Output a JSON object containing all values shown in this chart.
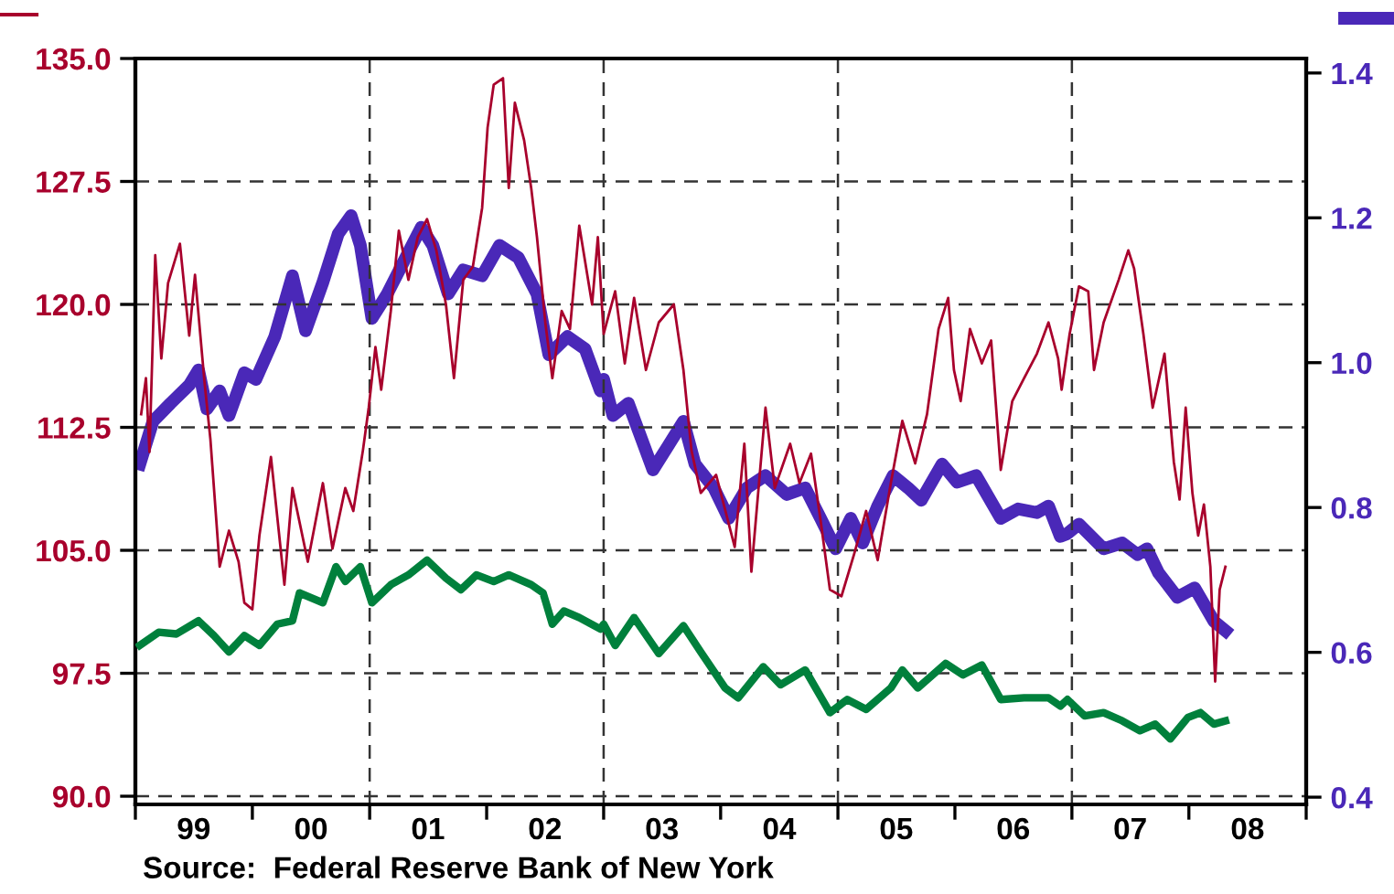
{
  "chart_data": {
    "type": "line",
    "xlim": [
      "1999-01-01",
      "2009-01-01"
    ],
    "xticks": [
      {
        "value": "1999-01-01",
        "label": null
      },
      {
        "value": "2000-01-01",
        "label": null
      },
      {
        "value": "2001-01-01",
        "label": null
      },
      {
        "value": "2002-01-01",
        "label": null
      },
      {
        "value": "2003-01-01",
        "label": null
      },
      {
        "value": "2004-01-01",
        "label": null
      },
      {
        "value": "2005-01-01",
        "label": null
      },
      {
        "value": "2006-01-01",
        "label": null
      },
      {
        "value": "2007-01-01",
        "label": null
      },
      {
        "value": "2008-01-01",
        "label": null
      },
      {
        "value": "2009-01-01",
        "label": null
      },
      {
        "value": "1999-07-02",
        "label": "99"
      },
      {
        "value": "2000-07-02",
        "label": "00"
      },
      {
        "value": "2001-07-02",
        "label": "01"
      },
      {
        "value": "2002-07-02",
        "label": "02"
      },
      {
        "value": "2003-07-02",
        "label": "03"
      },
      {
        "value": "2004-07-02",
        "label": "04"
      },
      {
        "value": "2005-07-02",
        "label": "05"
      },
      {
        "value": "2006-07-02",
        "label": "06"
      },
      {
        "value": "2007-07-02",
        "label": "07"
      },
      {
        "value": "2008-07-02",
        "label": "08"
      }
    ],
    "ylim": [
      89.5,
      135
    ],
    "yticks": [
      {
        "value": 90,
        "label": "90.0"
      },
      {
        "value": 97.5,
        "label": "97.5"
      },
      {
        "value": 105,
        "label": "105.0"
      },
      {
        "value": 112.5,
        "label": "112.5"
      },
      {
        "value": 120,
        "label": "120.0"
      },
      {
        "value": 127.5,
        "label": "127.5"
      },
      {
        "value": 135,
        "label": "135.0"
      }
    ],
    "y2lim": [
      0.39,
      1.42
    ],
    "y2ticks": [
      {
        "value": 0.4,
        "label": "0.4"
      },
      {
        "value": 0.6,
        "label": "0.6"
      },
      {
        "value": 0.8,
        "label": "0.8"
      },
      {
        "value": 1.0,
        "label": "1.0"
      },
      {
        "value": 1.2,
        "label": "1.2"
      },
      {
        "value": 1.4,
        "label": "1.4"
      }
    ],
    "grid": "y",
    "ref_lines": [
      {
        "axis": "x",
        "value": "2001-01-01",
        "line_style": "dashed"
      },
      {
        "axis": "x",
        "value": "2003-01-01",
        "line_style": "dashed"
      },
      {
        "axis": "x",
        "value": "2005-01-01",
        "line_style": "dashed"
      },
      {
        "axis": "x",
        "value": "2007-01-01",
        "line_style": "dashed"
      }
    ],
    "marker": "none",
    "line_style": "solid",
    "annotations": [
      "Source:  Federal Reserve Bank of New York"
    ],
    "series": [
      {
        "color": "#a8002c",
        "x": [
          "1999-01-19",
          "1999-02-03",
          "1999-02-14",
          "1999-03-04",
          "1999-03-23",
          "1999-04-13",
          "1999-05-20",
          "1999-06-18",
          "1999-07-06",
          "1999-08-05",
          "1999-08-23",
          "1999-09-21",
          "1999-10-20",
          "1999-11-19",
          "1999-12-07",
          "2000-01-01",
          "2000-01-23",
          "2000-02-28",
          "2000-04-10",
          "2000-05-05",
          "2000-06-22",
          "2000-08-08",
          "2000-09-07",
          "2000-10-17",
          "2000-11-11",
          "2000-12-11",
          "2000-12-29",
          "2001-01-19",
          "2001-02-06",
          "2001-03-08",
          "2001-04-02",
          "2001-05-02",
          "2001-05-31",
          "2001-06-29",
          "2001-07-28",
          "2001-08-27",
          "2001-09-21",
          "2001-10-20",
          "2001-11-19",
          "2001-12-18",
          "2002-01-04",
          "2002-01-23",
          "2002-02-21",
          "2002-03-11",
          "2002-03-30",
          "2002-04-28",
          "2002-05-20",
          "2002-06-07",
          "2002-07-03",
          "2002-07-25",
          "2002-08-23",
          "2002-09-18",
          "2002-10-17",
          "2002-11-26",
          "2002-12-14",
          "2003-01-01",
          "2003-02-06",
          "2003-03-08",
          "2003-04-06",
          "2003-05-13",
          "2003-06-22",
          "2003-08-08",
          "2003-09-07",
          "2003-10-02",
          "2003-10-31",
          "2003-12-18",
          "2004-02-14",
          "2004-03-15",
          "2004-04-06",
          "2004-05-20",
          "2004-06-18",
          "2004-08-05",
          "2004-09-03",
          "2004-10-09",
          "2004-11-08",
          "2004-12-07",
          "2005-01-12",
          "2005-02-21",
          "2005-03-30",
          "2005-05-05",
          "2005-06-15",
          "2005-07-21",
          "2005-08-30",
          "2005-10-06",
          "2005-11-11",
          "2005-12-11",
          "2005-12-29",
          "2006-01-19",
          "2006-02-17",
          "2006-03-26",
          "2006-04-24",
          "2006-05-24",
          "2006-06-29",
          "2006-08-05",
          "2006-09-14",
          "2006-10-20",
          "2006-11-19",
          "2006-11-30",
          "2006-12-25",
          "2007-01-23",
          "2007-02-21",
          "2007-03-11",
          "2007-04-10",
          "2007-05-27",
          "2007-06-26",
          "2007-07-14",
          "2007-08-12",
          "2007-09-10",
          "2007-10-17",
          "2007-11-15",
          "2007-12-03",
          "2007-12-22",
          "2008-01-12",
          "2008-01-30",
          "2008-02-17",
          "2008-03-08",
          "2008-03-23",
          "2008-04-06",
          "2008-04-24"
        ],
        "values": [
          113.3,
          115.5,
          111.0,
          123.0,
          116.7,
          121.3,
          123.7,
          118.1,
          121.8,
          115.2,
          111.8,
          104.0,
          106.2,
          104.3,
          101.8,
          101.4,
          105.9,
          110.7,
          102.9,
          108.8,
          104.3,
          109.1,
          105.1,
          108.8,
          107.4,
          111.1,
          113.7,
          117.4,
          114.8,
          119.6,
          124.5,
          121.5,
          124.1,
          125.2,
          123.3,
          120.0,
          115.5,
          121.5,
          122.3,
          125.9,
          130.8,
          133.4,
          133.8,
          127.1,
          132.3,
          130.0,
          127.1,
          124.1,
          118.9,
          115.5,
          119.6,
          118.5,
          124.8,
          120.0,
          124.1,
          118.2,
          120.8,
          116.4,
          120.4,
          116.0,
          118.9,
          120.0,
          116.0,
          111.1,
          108.5,
          109.6,
          105.2,
          111.5,
          103.7,
          113.7,
          108.8,
          111.5,
          109.1,
          110.9,
          106.8,
          102.6,
          102.2,
          104.8,
          107.4,
          104.4,
          109.1,
          112.9,
          110.3,
          113.3,
          118.5,
          120.4,
          116.0,
          114.1,
          118.5,
          116.4,
          117.8,
          109.9,
          114.1,
          115.5,
          117.0,
          118.9,
          116.7,
          114.8,
          118.2,
          121.1,
          120.8,
          116.0,
          118.9,
          121.5,
          123.3,
          122.2,
          118.2,
          113.7,
          117.0,
          110.4,
          108.1,
          113.7,
          108.5,
          105.9,
          107.8,
          104.0,
          97.0,
          102.6,
          104.0
        ]
      },
      {
        "color": "#4a28b8",
        "axis": "y2",
        "x": [
          "1999-01-15",
          "1999-02-25",
          "1999-04-21",
          "1999-06-18",
          "1999-07-17",
          "1999-08-12",
          "1999-09-21",
          "1999-10-20",
          "1999-12-07",
          "2000-01-12",
          "2000-03-11",
          "2000-05-05",
          "2000-06-15",
          "2000-08-08",
          "2000-09-25",
          "2000-11-04",
          "2000-12-03",
          "2001-01-08",
          "2001-02-25",
          "2001-04-13",
          "2001-06-11",
          "2001-07-17",
          "2001-09-03",
          "2001-10-20",
          "2001-12-18",
          "2002-02-10",
          "2002-04-10",
          "2002-06-07",
          "2002-07-14",
          "2002-09-10",
          "2002-11-04",
          "2002-12-22",
          "2003-01-01",
          "2003-01-30",
          "2003-03-19",
          "2003-06-04",
          "2003-07-21",
          "2003-09-07",
          "2003-10-13",
          "2003-12-11",
          "2004-01-26",
          "2004-03-23",
          "2004-05-20",
          "2004-07-25",
          "2004-09-21",
          "2004-11-08",
          "2004-12-25",
          "2005-02-10",
          "2005-03-19",
          "2005-05-05",
          "2005-06-22",
          "2005-08-08",
          "2005-09-18",
          "2005-11-22",
          "2006-01-08",
          "2006-03-08",
          "2006-05-24",
          "2006-07-17",
          "2006-09-14",
          "2006-10-20",
          "2006-11-26",
          "2006-12-18",
          "2007-01-23",
          "2007-04-10",
          "2007-06-07",
          "2007-07-25",
          "2007-08-23",
          "2007-09-28",
          "2007-11-26",
          "2008-01-19",
          "2008-03-19",
          "2008-04-24"
        ],
        "values": [
          0.86,
          0.919,
          0.944,
          0.969,
          0.99,
          0.936,
          0.961,
          0.927,
          0.986,
          0.977,
          1.036,
          1.12,
          1.044,
          1.111,
          1.178,
          1.203,
          1.162,
          1.061,
          1.095,
          1.136,
          1.187,
          1.162,
          1.095,
          1.128,
          1.12,
          1.162,
          1.145,
          1.095,
          1.011,
          1.036,
          1.019,
          0.961,
          0.977,
          0.927,
          0.944,
          0.852,
          0.885,
          0.919,
          0.86,
          0.827,
          0.785,
          0.827,
          0.844,
          0.818,
          0.827,
          0.785,
          0.743,
          0.785,
          0.751,
          0.802,
          0.844,
          0.827,
          0.81,
          0.86,
          0.835,
          0.844,
          0.785,
          0.798,
          0.793,
          0.802,
          0.76,
          0.764,
          0.777,
          0.743,
          0.751,
          0.735,
          0.743,
          0.71,
          0.676,
          0.689,
          0.643,
          0.63
        ]
      },
      {
        "color": "#00803c",
        "x": [
          "1999-01-15",
          "1999-03-15",
          "1999-05-09",
          "1999-07-17",
          "1999-09-03",
          "1999-10-20",
          "1999-12-07",
          "2000-01-23",
          "2000-03-19",
          "2000-05-05",
          "2000-05-27",
          "2000-08-08",
          "2000-09-18",
          "2000-10-17",
          "2000-12-03",
          "2001-01-08",
          "2001-03-08",
          "2001-05-02",
          "2001-06-29",
          "2001-08-27",
          "2001-10-13",
          "2001-11-30",
          "2002-01-23",
          "2002-03-11",
          "2002-05-20",
          "2002-06-26",
          "2002-07-25",
          "2002-08-30",
          "2002-10-17",
          "2002-12-22",
          "2003-01-01",
          "2003-02-06",
          "2003-04-06",
          "2003-06-22",
          "2003-09-07",
          "2003-10-31",
          "2004-01-15",
          "2004-02-25",
          "2004-05-13",
          "2004-07-06",
          "2004-09-21",
          "2004-12-07",
          "2005-01-30",
          "2005-03-30",
          "2005-06-15",
          "2005-07-21",
          "2005-09-07",
          "2005-12-03",
          "2006-01-26",
          "2006-03-26",
          "2006-05-24",
          "2006-08-05",
          "2006-10-20",
          "2006-11-26",
          "2006-12-18",
          "2007-02-10",
          "2007-04-10",
          "2007-06-07",
          "2007-08-01",
          "2007-09-18",
          "2007-11-04",
          "2007-12-29",
          "2008-02-06",
          "2008-03-19",
          "2008-04-24"
        ],
        "values": [
          99.2,
          100.0,
          99.9,
          100.7,
          99.8,
          98.8,
          99.8,
          99.2,
          100.5,
          100.7,
          102.4,
          101.8,
          104.0,
          103.1,
          104.0,
          101.8,
          102.9,
          103.5,
          104.4,
          103.3,
          102.6,
          103.5,
          103.1,
          103.5,
          102.9,
          102.4,
          100.5,
          101.3,
          100.9,
          100.2,
          100.5,
          99.2,
          100.9,
          98.7,
          100.4,
          98.8,
          96.6,
          96.0,
          97.9,
          96.8,
          97.7,
          95.1,
          95.9,
          95.3,
          96.6,
          97.7,
          96.6,
          98.1,
          97.4,
          98.0,
          95.9,
          96.0,
          96.0,
          95.5,
          95.9,
          94.9,
          95.1,
          94.6,
          94.0,
          94.4,
          93.5,
          94.8,
          95.1,
          94.4,
          94.6
        ]
      }
    ]
  }
}
